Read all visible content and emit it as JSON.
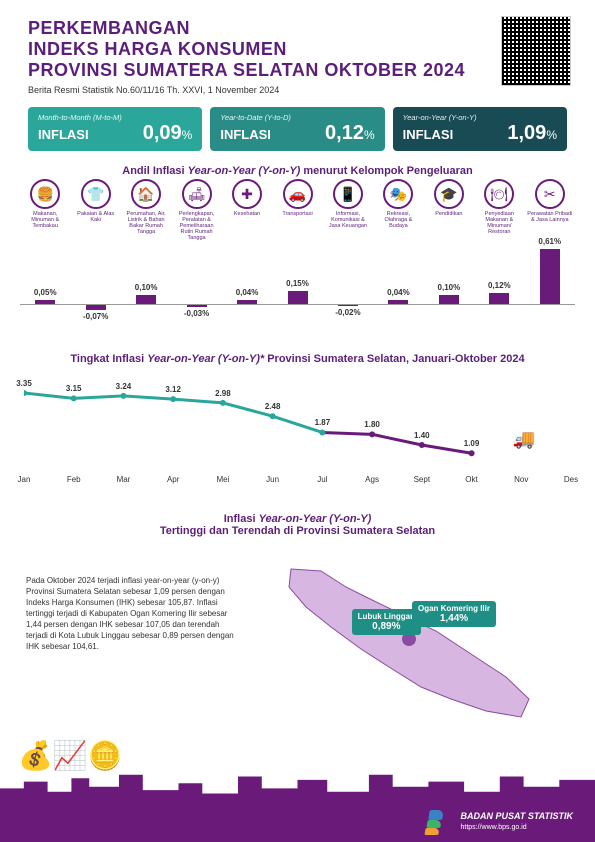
{
  "header": {
    "line1": "PERKEMBANGAN",
    "line2": "INDEKS HARGA KONSUMEN",
    "line3": "PROVINSI SUMATERA SELATAN OKTOBER 2024",
    "subtitle": "Berita Resmi Statistik No.60/11/16 Th. XXVI, 1 November 2024",
    "title_color": "#5b1f7a"
  },
  "metrics": [
    {
      "top": "Month-to-Month (M-to-M)",
      "label": "INFLASI",
      "value": "0,09",
      "pct": "%",
      "bg": "#2aa79a"
    },
    {
      "top": "Year-to-Date (Y-to-D)",
      "label": "INFLASI",
      "value": "0,12",
      "pct": "%",
      "bg": "#2a8c86"
    },
    {
      "top": "Year-on-Year (Y-on-Y)",
      "label": "INFLASI",
      "value": "1,09",
      "pct": "%",
      "bg": "#184b54"
    }
  ],
  "cat_section": {
    "title_a": "Andil Inflasi ",
    "title_b": "Year-on-Year (Y-on-Y)",
    "title_c": " menurut Kelompok Pengeluaran",
    "baseline": 125,
    "scale": 90,
    "bar_color": "#6a1b7a",
    "items": [
      {
        "name": "Makanan, Minuman & Tembakau",
        "val": "0,05%",
        "num": 0.05,
        "icon": "🍔"
      },
      {
        "name": "Pakaian & Alas Kaki",
        "val": "-0,07%",
        "num": -0.07,
        "icon": "👕"
      },
      {
        "name": "Perumahan, Air, Listrik & Bahan Bakar Rumah Tangga",
        "val": "0,10%",
        "num": 0.1,
        "icon": "🏠"
      },
      {
        "name": "Perlengkapan, Peralatan & Pemeliharaan Rutin Rumah Tangga",
        "val": "-0,03%",
        "num": -0.03,
        "icon": "🛋"
      },
      {
        "name": "Kesehatan",
        "val": "0,04%",
        "num": 0.04,
        "icon": "✚"
      },
      {
        "name": "Transportasi",
        "val": "0,15%",
        "num": 0.15,
        "icon": "🚗"
      },
      {
        "name": "Informasi, Komunikasi & Jasa Keuangan",
        "val": "-0,02%",
        "num": -0.02,
        "icon": "📱"
      },
      {
        "name": "Rekreasi, Olahraga & Budaya",
        "val": "0,04%",
        "num": 0.04,
        "icon": "🎭"
      },
      {
        "name": "Pendidikan",
        "val": "0,10%",
        "num": 0.1,
        "icon": "🎓"
      },
      {
        "name": "Penyediaan Makanan & Minuman/ Restoran",
        "val": "0,12%",
        "num": 0.12,
        "icon": "🍽"
      },
      {
        "name": "Perawatan Pribadi & Jasa Lainnya",
        "val": "0,61%",
        "num": 0.61,
        "icon": "✂"
      }
    ]
  },
  "line_section": {
    "title_a": "Tingkat Inflasi ",
    "title_b": "Year-on-Year (Y-on-Y)*",
    "title_c": " Provinsi Sumatera Selatan, Januari-Oktober 2024",
    "months": [
      "Jan",
      "Feb",
      "Mar",
      "Apr",
      "Mei",
      "Jun",
      "Jul",
      "Ags",
      "Sept",
      "Okt",
      "Nov",
      "Des"
    ],
    "values": [
      3.35,
      3.15,
      3.24,
      3.12,
      2.98,
      2.48,
      1.87,
      1.8,
      1.4,
      1.09
    ],
    "labels": [
      "3.35",
      "3.15",
      "3.24",
      "3.12",
      "2.98",
      "2.48",
      "1.87",
      "1.80",
      "1.40",
      "1.09"
    ],
    "ymax": 3.5,
    "ymin": 0.5,
    "color_early": "#2aa79a",
    "color_late": "#6a1b7a",
    "split_index": 6
  },
  "map_section": {
    "title_a": "Inflasi ",
    "title_b": "Year-on-Year (Y-on-Y)",
    "title_c": "Tertinggi dan Terendah di Provinsi Sumatera Selatan",
    "paragraph": "Pada Oktober 2024 terjadi inflasi year-on-year (y-on-y) Provinsi Sumatera Selatan sebesar 1,09 persen dengan Indeks Harga Konsumen (IHK) sebesar 105,87. Inflasi tertinggi terjadi di Kabupaten Ogan Komering Ilir sebesar 1,44 persen dengan IHK sebesar 107,05 dan terendah terjadi di Kota Lubuk Linggau sebesar 0,89 persen dengan IHK sebesar 104,61.",
    "callouts": [
      {
        "name": "Lubuk Linggau",
        "value": "0,89%"
      },
      {
        "name": "Ogan Komering Ilir",
        "value": "1,44%"
      }
    ],
    "map_fill": "#d8b6e2",
    "map_stroke": "#8a4ca0"
  },
  "footer": {
    "org": "BADAN PUSAT STATISTIK",
    "url": "https://www.bps.go.id",
    "bg": "#6a1b7a"
  }
}
